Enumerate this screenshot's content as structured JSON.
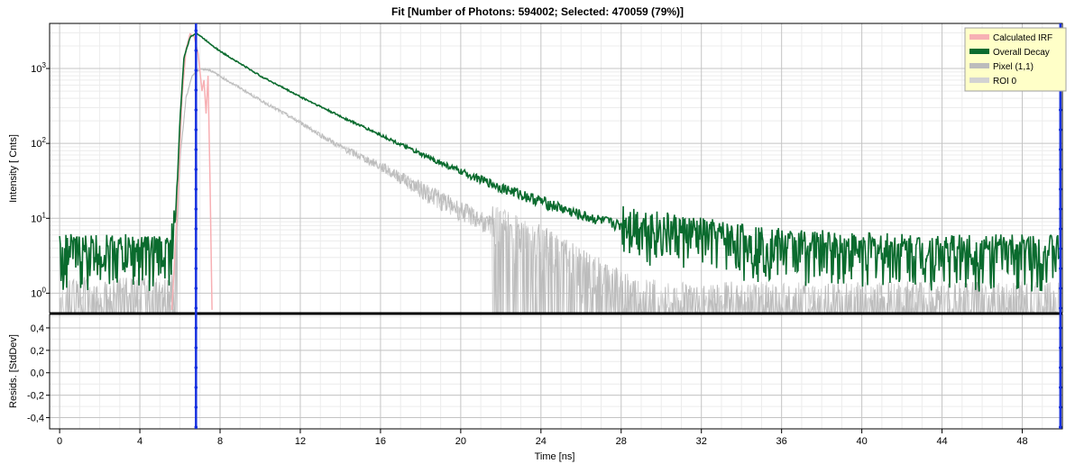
{
  "chart_data": {
    "type": "line",
    "title": "Fit [Number of Photons: 594002; Selected: 470059 (79%)]",
    "xlabel": "Time [ns]",
    "xlim": [
      -0.5,
      50
    ],
    "xticks": [
      0,
      4,
      8,
      12,
      16,
      20,
      24,
      28,
      32,
      36,
      40,
      44,
      48
    ],
    "grid": true,
    "legend_position": "top-right",
    "cursor_lines": [
      6.8,
      49.9
    ],
    "colors": {
      "irf": "#f7b0b4",
      "decay": "#0a6b2e",
      "pixel": "#bcbcbc",
      "roi": "#d2d2d2",
      "cursor": "#1630e0"
    },
    "panels": {
      "decay": {
        "ylabel": "Intensity [ Cnts]",
        "yscale": "log",
        "ylim": [
          0.55,
          4000
        ],
        "yticks": [
          1,
          10,
          100,
          1000
        ],
        "ytick_labels": [
          {
            "base": "10",
            "exp": "0"
          },
          {
            "base": "10",
            "exp": "1"
          },
          {
            "base": "10",
            "exp": "2"
          },
          {
            "base": "10",
            "exp": "3"
          }
        ]
      },
      "residuals": {
        "ylabel": "Resids. [StdDev]",
        "ylim": [
          -0.5,
          0.52
        ],
        "yticks": [
          -0.4,
          -0.2,
          0.0,
          0.2,
          0.4
        ],
        "ytick_labels": [
          "-0,4",
          "-0,2",
          "0,0",
          "0,2",
          "0,4"
        ]
      }
    },
    "series": [
      {
        "name": "Calculated IRF",
        "x": [
          5.6,
          5.9,
          6.1,
          6.3,
          6.5,
          6.7,
          6.9,
          7.0,
          7.1,
          7.2,
          7.3,
          7.4,
          7.5,
          7.6
        ],
        "y": [
          0.6,
          20,
          400,
          1800,
          2900,
          2700,
          1600,
          900,
          500,
          700,
          250,
          800,
          30,
          0.6
        ]
      },
      {
        "name": "Overall Decay",
        "x": [
          0,
          5.5,
          5.8,
          6.0,
          6.2,
          6.5,
          6.8,
          8,
          10,
          12,
          14,
          16,
          18,
          20,
          22,
          24,
          26,
          28,
          30,
          32,
          34,
          36,
          40,
          44,
          48,
          50
        ],
        "y": [
          3,
          3,
          12,
          200,
          1400,
          2600,
          3000,
          1700,
          800,
          420,
          230,
          130,
          72,
          42,
          26,
          17,
          11,
          8,
          6,
          5,
          4.2,
          3.6,
          3.2,
          3,
          3,
          3
        ]
      },
      {
        "name": "Pixel (1,1)",
        "x": [
          0,
          5.5,
          5.8,
          6.0,
          6.3,
          6.6,
          7.0,
          7.5,
          10,
          12,
          14,
          16,
          18,
          20,
          22,
          24,
          26,
          28,
          30
        ],
        "y": [
          0.8,
          0.8,
          3,
          60,
          400,
          800,
          1000,
          950,
          380,
          190,
          90,
          50,
          25,
          13,
          7,
          4,
          2,
          1,
          0.7
        ]
      },
      {
        "name": "ROI 0",
        "x": [
          0,
          5.5,
          5.8,
          6.0,
          6.3,
          6.6,
          7.0,
          7.5,
          10,
          12,
          14,
          16,
          18,
          20,
          22,
          24,
          26,
          28,
          30
        ],
        "y": [
          0.8,
          0.8,
          3,
          60,
          400,
          800,
          1000,
          950,
          380,
          190,
          90,
          50,
          25,
          13,
          7,
          4,
          2,
          1,
          0.7
        ]
      }
    ]
  }
}
